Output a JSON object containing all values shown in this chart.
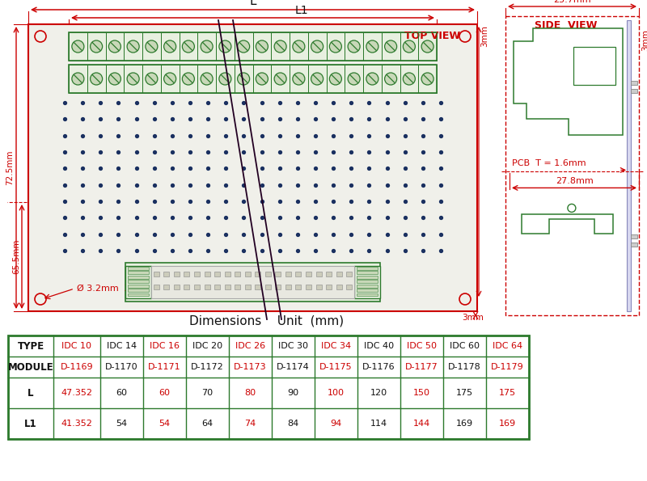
{
  "bg_color": "#ffffff",
  "red": "#cc0000",
  "green": "#2d7a2d",
  "dark_blue": "#1a3060",
  "black": "#111111",
  "gray_pcb": "#f0f0ea",
  "green_light": "#e8f0e0",
  "green_medium": "#c8d8b8",
  "rows": {
    "TYPE": [
      "IDC 10",
      "IDC 14",
      "IDC 16",
      "IDC 20",
      "IDC 26",
      "IDC 30",
      "IDC 34",
      "IDC 40",
      "IDC 50",
      "IDC 60",
      "IDC 64"
    ],
    "MODULE": [
      "D-1169",
      "D-1170",
      "D-1171",
      "D-1172",
      "D-1173",
      "D-1174",
      "D-1175",
      "D-1176",
      "D-1177",
      "D-1178",
      "D-1179"
    ],
    "L": [
      "47.352",
      "60",
      "60",
      "70",
      "80",
      "90",
      "100",
      "120",
      "150",
      "175",
      "175"
    ],
    "L1": [
      "41.352",
      "54",
      "54",
      "64",
      "74",
      "84",
      "94",
      "114",
      "144",
      "169",
      "169"
    ]
  },
  "red_value_cols": [
    0,
    2,
    4,
    6,
    8,
    10
  ],
  "dim_title": "Dimensions    Unit  (mm)"
}
